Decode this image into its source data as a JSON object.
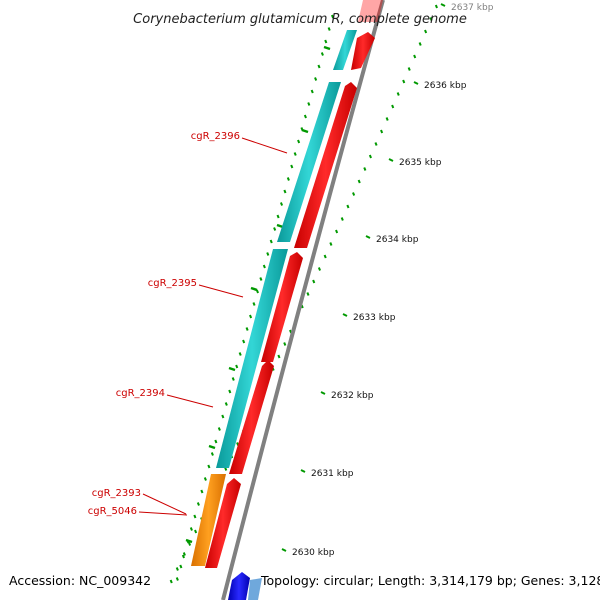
{
  "title": "Corynebacterium glutamicum R, complete genome",
  "accession": "Accession: NC_009342",
  "topology": "Topology: circular; Length: 3,314,179 bp; Genes: 3,128",
  "kbp_ticks": [
    {
      "label": "2637 kbp",
      "kbp": 2637
    },
    {
      "label": "2636 kbp",
      "kbp": 2636
    },
    {
      "label": "2635 kbp",
      "kbp": 2635
    },
    {
      "label": "2634 kbp",
      "kbp": 2634
    },
    {
      "label": "2633 kbp",
      "kbp": 2633
    },
    {
      "label": "2632 kbp",
      "kbp": 2632
    },
    {
      "label": "2631 kbp",
      "kbp": 2631
    },
    {
      "label": "2630 kbp",
      "kbp": 2630
    }
  ],
  "gene_labels": [
    {
      "name": "cgR_2396"
    },
    {
      "name": "cgR_2395"
    },
    {
      "name": "cgR_2394"
    },
    {
      "name": "cgR_2393"
    },
    {
      "name": "cgR_5046"
    }
  ],
  "colors": {
    "cds": "#00bfbf",
    "forward_gene": "#ff0000",
    "orange_cds": "#ff8c00",
    "blue_gene": "#0000ff",
    "backbone": "#808080",
    "tick_green": "#009900",
    "label_red": "#cc0000"
  }
}
